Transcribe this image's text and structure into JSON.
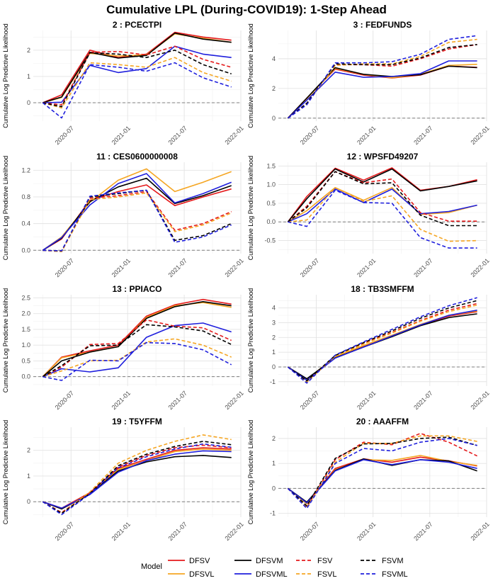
{
  "figure": {
    "title": "Cumulative LPL (During-COVID19): 1-Step Ahead",
    "ylabel": "Cumulative Log Predictive Likelihood",
    "legend_title": "Model"
  },
  "styles": {
    "DFSV": {
      "color": "#e41a1c",
      "dash": "solid"
    },
    "DFSVL": {
      "color": "#f5a623",
      "dash": "solid"
    },
    "DFSVM": {
      "color": "#000000",
      "dash": "solid"
    },
    "DFSVML": {
      "color": "#1f1fdd",
      "dash": "solid"
    },
    "FSV": {
      "color": "#e41a1c",
      "dash": "dashed"
    },
    "FSVL": {
      "color": "#f5a623",
      "dash": "dashed"
    },
    "FSVM": {
      "color": "#000000",
      "dash": "dashed"
    },
    "FSVML": {
      "color": "#1f1fdd",
      "dash": "dashed"
    }
  },
  "chart_data": [
    {
      "type": "line",
      "title": "2 : PCECTPI",
      "ylim": [
        -0.7,
        2.75
      ],
      "yticks": [
        0,
        1,
        2
      ],
      "x": [
        "2020-04",
        "2020-06",
        "2020-09",
        "2020-12",
        "2021-03",
        "2021-06",
        "2021-09",
        "2021-12"
      ],
      "xticks": [
        "2020-07",
        "2021-01",
        "2021-07",
        "2022-01"
      ],
      "xlim": [
        "2020-03",
        "2022-01"
      ],
      "series": [
        {
          "name": "DFSV",
          "values": [
            0,
            0.3,
            2.0,
            1.72,
            1.85,
            2.68,
            2.5,
            2.38
          ]
        },
        {
          "name": "DFSVL",
          "values": [
            0,
            0.2,
            1.88,
            1.78,
            1.82,
            2.62,
            2.45,
            2.3
          ]
        },
        {
          "name": "DFSVM",
          "values": [
            0,
            0.22,
            1.92,
            1.7,
            1.8,
            2.65,
            2.42,
            2.3
          ]
        },
        {
          "name": "DFSVML",
          "values": [
            0,
            0.02,
            1.42,
            1.15,
            1.3,
            2.15,
            1.85,
            1.72
          ]
        },
        {
          "name": "FSV",
          "values": [
            0,
            -0.08,
            1.92,
            1.95,
            1.82,
            2.15,
            1.65,
            1.35
          ]
        },
        {
          "name": "FSVL",
          "values": [
            0,
            -0.2,
            1.52,
            1.45,
            1.35,
            1.72,
            1.15,
            0.82
          ]
        },
        {
          "name": "FSVM",
          "values": [
            0,
            -0.15,
            1.9,
            1.85,
            1.72,
            2.0,
            1.45,
            1.1
          ]
        },
        {
          "name": "FSVML",
          "values": [
            0,
            -0.58,
            1.45,
            1.35,
            1.2,
            1.52,
            0.95,
            0.6
          ]
        }
      ]
    },
    {
      "type": "line",
      "title": "3 : FEDFUNDS",
      "ylim": [
        -0.2,
        5.9
      ],
      "yticks": [
        0,
        2,
        4
      ],
      "x": [
        "2020-04",
        "2020-06",
        "2020-09",
        "2020-12",
        "2021-03",
        "2021-06",
        "2021-09",
        "2021-12"
      ],
      "xticks": [
        "2020-07",
        "2021-01",
        "2021-07",
        "2022-01"
      ],
      "xlim": [
        "2020-03",
        "2022-01"
      ],
      "series": [
        {
          "name": "DFSV",
          "values": [
            0,
            1.35,
            3.3,
            2.9,
            2.7,
            2.9,
            3.5,
            3.42
          ]
        },
        {
          "name": "DFSVL",
          "values": [
            0,
            1.3,
            3.35,
            2.95,
            2.72,
            2.95,
            3.55,
            3.62
          ]
        },
        {
          "name": "DFSVM",
          "values": [
            0,
            1.35,
            3.4,
            2.95,
            2.8,
            2.92,
            3.5,
            3.4
          ]
        },
        {
          "name": "DFSVML",
          "values": [
            0,
            1.2,
            3.1,
            2.75,
            2.8,
            3.0,
            3.85,
            3.85
          ]
        },
        {
          "name": "FSV",
          "values": [
            0,
            1.0,
            3.6,
            3.6,
            3.5,
            4.0,
            4.65,
            4.95
          ]
        },
        {
          "name": "FSVL",
          "values": [
            0,
            0.95,
            3.55,
            3.65,
            3.65,
            4.15,
            5.1,
            5.3
          ]
        },
        {
          "name": "FSVM",
          "values": [
            0,
            1.0,
            3.65,
            3.6,
            3.6,
            4.05,
            4.75,
            4.95
          ]
        },
        {
          "name": "FSVML",
          "values": [
            0,
            0.9,
            3.72,
            3.72,
            3.8,
            4.3,
            5.3,
            5.55
          ]
        }
      ]
    },
    {
      "type": "line",
      "title": "11 : CES0600000008",
      "ylim": [
        -0.05,
        1.32
      ],
      "yticks": [
        0.0,
        0.4,
        0.8,
        1.2
      ],
      "x": [
        "2020-04",
        "2020-06",
        "2020-09",
        "2020-12",
        "2021-03",
        "2021-06",
        "2021-09",
        "2021-12"
      ],
      "xticks": [
        "2020-07",
        "2021-01",
        "2021-07",
        "2022-01"
      ],
      "xlim": [
        "2020-03",
        "2022-01"
      ],
      "series": [
        {
          "name": "DFSV",
          "values": [
            0,
            0.17,
            0.75,
            0.88,
            0.98,
            0.67,
            0.8,
            0.92
          ]
        },
        {
          "name": "DFSVL",
          "values": [
            0,
            0.2,
            0.72,
            1.05,
            1.22,
            0.88,
            1.02,
            1.18
          ]
        },
        {
          "name": "DFSVM",
          "values": [
            0,
            0.18,
            0.73,
            0.95,
            1.08,
            0.7,
            0.82,
            0.97
          ]
        },
        {
          "name": "DFSVML",
          "values": [
            0,
            0.19,
            0.68,
            1.0,
            1.15,
            0.71,
            0.85,
            1.02
          ]
        },
        {
          "name": "FSV",
          "values": [
            0,
            -0.02,
            0.78,
            0.82,
            0.88,
            0.3,
            0.4,
            0.58
          ]
        },
        {
          "name": "FSVL",
          "values": [
            0,
            -0.02,
            0.76,
            0.8,
            0.86,
            0.28,
            0.38,
            0.56
          ]
        },
        {
          "name": "FSVM",
          "values": [
            0,
            -0.01,
            0.8,
            0.85,
            0.9,
            0.15,
            0.22,
            0.4
          ]
        },
        {
          "name": "FSVML",
          "values": [
            0,
            -0.01,
            0.81,
            0.86,
            0.9,
            0.12,
            0.2,
            0.38
          ]
        }
      ]
    },
    {
      "type": "line",
      "title": "12 : WPSFD49207",
      "ylim": [
        -0.85,
        1.6
      ],
      "yticks": [
        -0.5,
        0.0,
        0.5,
        1.0,
        1.5
      ],
      "x": [
        "2020-04",
        "2020-06",
        "2020-09",
        "2020-12",
        "2021-03",
        "2021-06",
        "2021-09",
        "2021-12"
      ],
      "xticks": [
        "2020-07",
        "2021-01",
        "2021-07",
        "2022-01"
      ],
      "xlim": [
        "2020-03",
        "2022-01"
      ],
      "series": [
        {
          "name": "DFSV",
          "values": [
            0,
            0.68,
            1.44,
            1.12,
            1.45,
            0.85,
            0.95,
            1.13
          ]
        },
        {
          "name": "DFSVL",
          "values": [
            0,
            0.3,
            0.92,
            0.58,
            0.92,
            0.2,
            0.25,
            0.45
          ]
        },
        {
          "name": "DFSVM",
          "values": [
            0,
            0.62,
            1.42,
            1.07,
            1.42,
            0.83,
            0.95,
            1.1
          ]
        },
        {
          "name": "DFSVML",
          "values": [
            0,
            0.22,
            0.88,
            0.52,
            0.88,
            0.22,
            0.28,
            0.45
          ]
        },
        {
          "name": "FSV",
          "values": [
            0,
            0.42,
            1.35,
            1.05,
            1.15,
            0.25,
            0.02,
            0.02
          ]
        },
        {
          "name": "FSVL",
          "values": [
            0,
            0.05,
            0.92,
            0.55,
            0.7,
            -0.2,
            -0.52,
            -0.5
          ]
        },
        {
          "name": "FSVM",
          "values": [
            0,
            0.38,
            1.35,
            1.02,
            1.05,
            0.18,
            -0.1,
            -0.1
          ]
        },
        {
          "name": "FSVML",
          "values": [
            0,
            -0.12,
            0.85,
            0.52,
            0.5,
            -0.42,
            -0.7,
            -0.7
          ]
        }
      ]
    },
    {
      "type": "line",
      "title": "13 : PPIACO",
      "ylim": [
        -0.3,
        2.6
      ],
      "yticks": [
        0.0,
        0.5,
        1.0,
        1.5,
        2.0,
        2.5
      ],
      "x": [
        "2020-04",
        "2020-06",
        "2020-09",
        "2020-12",
        "2021-03",
        "2021-06",
        "2021-09",
        "2021-12"
      ],
      "xticks": [
        "2020-07",
        "2021-01",
        "2021-07",
        "2022-01"
      ],
      "xlim": [
        "2020-03",
        "2022-01"
      ],
      "series": [
        {
          "name": "DFSV",
          "values": [
            0,
            0.62,
            0.82,
            1.0,
            1.92,
            2.28,
            2.45,
            2.3
          ]
        },
        {
          "name": "DFSVL",
          "values": [
            0,
            0.6,
            0.78,
            0.95,
            1.88,
            2.25,
            2.35,
            2.2
          ]
        },
        {
          "name": "DFSVM",
          "values": [
            0,
            0.5,
            0.78,
            0.95,
            1.85,
            2.22,
            2.38,
            2.25
          ]
        },
        {
          "name": "DFSVML",
          "values": [
            0,
            0.25,
            0.15,
            0.28,
            1.25,
            1.62,
            1.7,
            1.42
          ]
        },
        {
          "name": "FSV",
          "values": [
            0,
            0.3,
            1.02,
            1.05,
            1.8,
            1.6,
            1.55,
            1.15
          ]
        },
        {
          "name": "FSVL",
          "values": [
            0,
            0.18,
            0.5,
            0.52,
            1.1,
            1.2,
            1.0,
            0.62
          ]
        },
        {
          "name": "FSVM",
          "values": [
            0,
            0.35,
            0.98,
            1.0,
            1.65,
            1.58,
            1.45,
            1.02
          ]
        },
        {
          "name": "FSVML",
          "values": [
            0,
            -0.12,
            0.52,
            0.5,
            1.08,
            1.05,
            0.85,
            0.38
          ]
        }
      ]
    },
    {
      "type": "line",
      "title": "18 : TB3SMFFM",
      "ylim": [
        -1.3,
        4.9
      ],
      "yticks": [
        -1,
        0,
        1,
        2,
        3,
        4
      ],
      "x": [
        "2020-04",
        "2020-06",
        "2020-09",
        "2020-12",
        "2021-03",
        "2021-06",
        "2021-09",
        "2021-12"
      ],
      "xticks": [
        "2020-07",
        "2021-01",
        "2021-07",
        "2022-01"
      ],
      "xlim": [
        "2020-03",
        "2022-01"
      ],
      "series": [
        {
          "name": "DFSV",
          "values": [
            0,
            -0.85,
            0.65,
            1.4,
            2.1,
            2.85,
            3.45,
            3.75
          ]
        },
        {
          "name": "DFSVL",
          "values": [
            0,
            -0.85,
            0.68,
            1.45,
            2.15,
            2.88,
            3.5,
            3.8
          ]
        },
        {
          "name": "DFSVM",
          "values": [
            0,
            -0.8,
            0.62,
            1.35,
            2.05,
            2.8,
            3.35,
            3.6
          ]
        },
        {
          "name": "DFSVML",
          "values": [
            0,
            -0.9,
            0.6,
            1.35,
            2.1,
            2.85,
            3.5,
            3.85
          ]
        },
        {
          "name": "FSV",
          "values": [
            0,
            -1.0,
            0.75,
            1.6,
            2.35,
            3.15,
            3.85,
            4.3
          ]
        },
        {
          "name": "FSVL",
          "values": [
            0,
            -1.02,
            0.72,
            1.55,
            2.3,
            3.1,
            3.75,
            4.2
          ]
        },
        {
          "name": "FSVM",
          "values": [
            0,
            -0.95,
            0.78,
            1.65,
            2.45,
            3.3,
            4.0,
            4.5
          ]
        },
        {
          "name": "FSVML",
          "values": [
            0,
            -1.1,
            0.8,
            1.7,
            2.55,
            3.4,
            4.15,
            4.7
          ]
        }
      ]
    },
    {
      "type": "line",
      "title": "19 : T5YFFM",
      "ylim": [
        -0.6,
        2.9
      ],
      "yticks": [
        0,
        1,
        2
      ],
      "x": [
        "2020-04",
        "2020-06",
        "2020-09",
        "2020-12",
        "2021-03",
        "2021-06",
        "2021-09",
        "2021-12"
      ],
      "xticks": [
        "2020-07",
        "2021-01",
        "2021-07",
        "2022-01"
      ],
      "xlim": [
        "2020-03",
        "2022-01"
      ],
      "series": [
        {
          "name": "DFSV",
          "values": [
            0,
            -0.25,
            0.35,
            1.3,
            1.65,
            2.0,
            2.1,
            2.05
          ]
        },
        {
          "name": "DFSVL",
          "values": [
            0,
            -0.28,
            0.32,
            1.25,
            1.6,
            1.95,
            2.05,
            2.0
          ]
        },
        {
          "name": "DFSVM",
          "values": [
            0,
            -0.28,
            0.3,
            1.2,
            1.55,
            1.75,
            1.8,
            1.72
          ]
        },
        {
          "name": "DFSVML",
          "values": [
            0,
            -0.25,
            0.28,
            1.15,
            1.6,
            1.85,
            1.98,
            1.95
          ]
        },
        {
          "name": "FSV",
          "values": [
            0,
            -0.42,
            0.35,
            1.35,
            1.8,
            2.1,
            2.2,
            2.1
          ]
        },
        {
          "name": "FSVL",
          "values": [
            0,
            -0.45,
            0.38,
            1.5,
            2.0,
            2.35,
            2.6,
            2.42
          ]
        },
        {
          "name": "FSVM",
          "values": [
            0,
            -0.45,
            0.32,
            1.4,
            1.85,
            2.15,
            2.35,
            2.22
          ]
        },
        {
          "name": "FSVML",
          "values": [
            0,
            -0.5,
            0.3,
            1.32,
            1.75,
            2.05,
            2.25,
            2.12
          ]
        }
      ]
    },
    {
      "type": "line",
      "title": "20 : AAAFFM",
      "ylim": [
        -1.15,
        2.45
      ],
      "yticks": [
        -1,
        0,
        1,
        2
      ],
      "x": [
        "2020-04",
        "2020-06",
        "2020-09",
        "2020-12",
        "2021-03",
        "2021-06",
        "2021-09",
        "2021-12"
      ],
      "xticks": [
        "2020-07",
        "2021-01",
        "2021-07",
        "2022-01"
      ],
      "xlim": [
        "2020-03",
        "2022-01"
      ],
      "series": [
        {
          "name": "DFSV",
          "values": [
            0,
            -0.6,
            0.8,
            1.18,
            1.05,
            1.25,
            1.1,
            0.9
          ]
        },
        {
          "name": "DFSVL",
          "values": [
            0,
            -0.62,
            0.75,
            1.15,
            1.12,
            1.32,
            1.08,
            0.92
          ]
        },
        {
          "name": "DFSVM",
          "values": [
            0,
            -0.55,
            0.72,
            1.18,
            0.92,
            1.15,
            1.1,
            0.7
          ]
        },
        {
          "name": "DFSVML",
          "values": [
            0,
            -0.58,
            0.7,
            1.15,
            0.95,
            1.15,
            1.05,
            0.8
          ]
        },
        {
          "name": "FSV",
          "values": [
            0,
            -0.75,
            1.15,
            1.85,
            1.75,
            2.2,
            1.85,
            1.3
          ]
        },
        {
          "name": "FSVL",
          "values": [
            0,
            -0.78,
            1.05,
            1.8,
            1.8,
            2.1,
            2.1,
            1.88
          ]
        },
        {
          "name": "FSVM",
          "values": [
            0,
            -0.7,
            1.2,
            1.78,
            1.8,
            2.0,
            2.05,
            1.72
          ]
        },
        {
          "name": "FSVML",
          "values": [
            0,
            -0.8,
            1.0,
            1.6,
            1.5,
            1.85,
            2.0,
            1.72
          ]
        }
      ]
    }
  ],
  "legend": {
    "items": [
      "DFSV",
      "DFSVL",
      "DFSVM",
      "DFSVML",
      "FSV",
      "FSVL",
      "FSVM",
      "FSVML"
    ]
  }
}
